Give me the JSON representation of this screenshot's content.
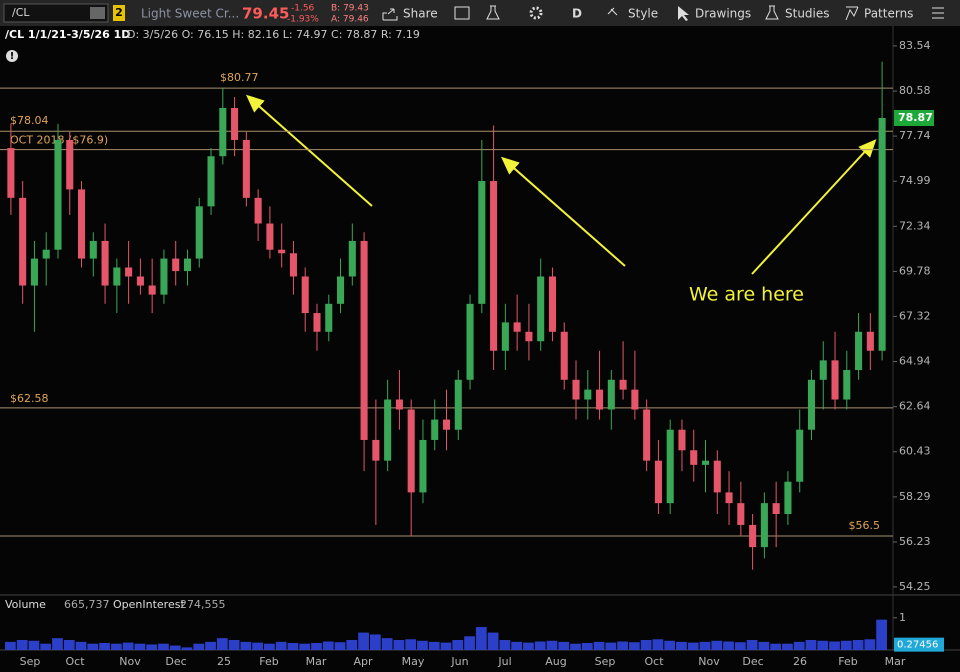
{
  "toolbar": {
    "symbol": "/CL",
    "badge": "2",
    "description": "Light Sweet Cr...",
    "last": "79.45",
    "change": "-1.56",
    "change_pct": "-1.93%",
    "bid": "B: 79.43",
    "ask": "A: 79.46",
    "share": "Share",
    "period": "D",
    "style": "Style",
    "drawings": "Drawings",
    "studies": "Studies",
    "patterns": "Patterns"
  },
  "header": {
    "title": "/CL 1/1/21-3/5/26 1D",
    "ohlc": "D: 3/5/26  O: 76.15  H: 82.16  L: 74.97  C: 78.87  R: 7.19"
  },
  "annotations": {
    "note": "We are here"
  },
  "volume_panel": {
    "volume_label": "Volume",
    "volume_value": "665,737",
    "oi_label": "OpenInterest",
    "oi_value": "274,555",
    "vlim": [
      0.13,
      1.13
    ],
    "vticks": [
      1
    ],
    "current": 0.27456,
    "bars": [
      0.35,
      0.4,
      0.38,
      0.3,
      0.45,
      0.4,
      0.35,
      0.3,
      0.32,
      0.3,
      0.33,
      0.3,
      0.28,
      0.3,
      0.25,
      0.2,
      0.3,
      0.35,
      0.45,
      0.4,
      0.35,
      0.33,
      0.3,
      0.35,
      0.32,
      0.3,
      0.32,
      0.36,
      0.34,
      0.4,
      0.6,
      0.55,
      0.45,
      0.4,
      0.42,
      0.38,
      0.35,
      0.33,
      0.4,
      0.5,
      0.75,
      0.6,
      0.4,
      0.35,
      0.33,
      0.36,
      0.38,
      0.35,
      0.3,
      0.32,
      0.35,
      0.33,
      0.36,
      0.34,
      0.4,
      0.42,
      0.38,
      0.35,
      0.33,
      0.35,
      0.38,
      0.36,
      0.34,
      0.4,
      0.35,
      0.3,
      0.3,
      0.35,
      0.4,
      0.38,
      0.36,
      0.38,
      0.4,
      0.42,
      0.95
    ]
  },
  "chart_data": {
    "type": "candlestick",
    "log_scale": true,
    "up_color": "#3aa757",
    "down_color": "#e5566a",
    "ylim": [
      54.03,
      84.27
    ],
    "yticks": [
      54.25,
      56.23,
      58.29,
      60.43,
      62.64,
      64.94,
      67.32,
      69.78,
      72.34,
      74.99,
      77.74,
      80.58,
      83.54
    ],
    "categories": [
      "Sep",
      "Oct",
      "Nov",
      "Dec",
      "25",
      "Feb",
      "Mar",
      "Apr",
      "May",
      "Jun",
      "Jul",
      "Aug",
      "Sep",
      "Oct",
      "Nov",
      "Dec",
      "26",
      "Feb",
      "Mar"
    ],
    "last": 78.87,
    "levels": [
      {
        "value": 80.77,
        "label": "$80.77"
      },
      {
        "value": 78.04,
        "label": "$78.04"
      },
      {
        "value": 76.9,
        "label": "OCT 2018 ($76.9)"
      },
      {
        "value": 62.58,
        "label": "$62.58"
      },
      {
        "value": 56.5,
        "label": "$56.5"
      }
    ],
    "ohlc": [
      [
        77,
        78.5,
        73,
        74
      ],
      [
        74,
        75,
        68,
        69
      ],
      [
        69,
        71.5,
        66.5,
        70.5
      ],
      [
        70.5,
        72,
        69,
        71
      ],
      [
        71,
        78.5,
        70.5,
        77.5
      ],
      [
        77.5,
        78,
        73,
        74.5
      ],
      [
        74.5,
        75,
        70,
        70.5
      ],
      [
        70.5,
        72,
        69.5,
        71.5
      ],
      [
        71.5,
        72.5,
        68,
        69
      ],
      [
        69,
        70.5,
        67.5,
        70
      ],
      [
        70,
        71.5,
        68,
        69.5
      ],
      [
        69.5,
        70.5,
        68.5,
        69
      ],
      [
        69,
        70.5,
        67.5,
        68.5
      ],
      [
        68.5,
        71,
        68,
        70.5
      ],
      [
        70.5,
        71.5,
        69,
        69.8
      ],
      [
        69.8,
        71,
        69,
        70.5
      ],
      [
        70.5,
        74,
        70,
        73.5
      ],
      [
        73.5,
        77,
        73,
        76.5
      ],
      [
        76.5,
        80.8,
        76,
        79.5
      ],
      [
        79.5,
        80.2,
        76.5,
        77.5
      ],
      [
        77.5,
        78,
        73.5,
        74
      ],
      [
        74,
        74.5,
        71.5,
        72.5
      ],
      [
        72.5,
        73.5,
        70.5,
        71
      ],
      [
        71,
        72.5,
        70,
        70.8
      ],
      [
        70.8,
        71.5,
        68.5,
        69.5
      ],
      [
        69.5,
        70,
        66.5,
        67.5
      ],
      [
        67.5,
        68,
        65.5,
        66.5
      ],
      [
        66.5,
        68.5,
        66,
        68
      ],
      [
        68,
        70.5,
        67.5,
        69.5
      ],
      [
        69.5,
        72.5,
        69,
        71.5
      ],
      [
        71.5,
        72,
        59.5,
        61
      ],
      [
        61,
        63,
        57,
        60
      ],
      [
        60,
        64,
        59.5,
        63
      ],
      [
        63,
        64.5,
        61.5,
        62.5
      ],
      [
        62.5,
        63,
        56.5,
        58.5
      ],
      [
        58.5,
        62,
        58,
        61
      ],
      [
        61,
        63,
        60.5,
        62
      ],
      [
        62,
        63.5,
        60.5,
        61.5
      ],
      [
        61.5,
        64.5,
        61,
        64
      ],
      [
        64,
        68.5,
        63.5,
        68
      ],
      [
        68,
        77.5,
        67.5,
        75
      ],
      [
        75,
        78.4,
        64.5,
        65.5
      ],
      [
        65.5,
        68,
        64.5,
        67
      ],
      [
        67,
        68.5,
        65.5,
        66.5
      ],
      [
        66.5,
        68,
        65,
        66
      ],
      [
        66,
        70.5,
        65.5,
        69.5
      ],
      [
        69.5,
        70,
        66,
        66.5
      ],
      [
        66.5,
        67,
        63.5,
        64
      ],
      [
        64,
        65,
        62,
        63
      ],
      [
        63,
        64.5,
        62,
        63.5
      ],
      [
        63.5,
        65.5,
        62,
        62.5
      ],
      [
        62.5,
        64.5,
        61.5,
        64
      ],
      [
        64,
        66,
        63,
        63.5
      ],
      [
        63.5,
        65.5,
        62,
        62.5
      ],
      [
        62.5,
        63,
        59.5,
        60
      ],
      [
        60,
        61,
        57.5,
        58
      ],
      [
        58,
        62,
        57.5,
        61.5
      ],
      [
        61.5,
        62,
        59.5,
        60.5
      ],
      [
        60.5,
        61.5,
        59,
        59.8
      ],
      [
        59.8,
        61,
        58.5,
        60
      ],
      [
        60,
        60.5,
        57.5,
        58.5
      ],
      [
        58.5,
        59.5,
        57,
        58
      ],
      [
        58,
        59,
        56.5,
        57
      ],
      [
        57,
        57.5,
        55,
        56
      ],
      [
        56,
        58.5,
        55.5,
        58
      ],
      [
        58,
        59,
        56,
        57.5
      ],
      [
        57.5,
        59.5,
        57,
        59
      ],
      [
        59,
        62.5,
        58.5,
        61.5
      ],
      [
        61.5,
        64.5,
        61,
        64
      ],
      [
        64,
        66,
        62.5,
        65
      ],
      [
        65,
        66.5,
        62.5,
        63
      ],
      [
        63,
        65.5,
        62.5,
        64.5
      ],
      [
        64.5,
        67.5,
        64,
        66.5
      ],
      [
        66.5,
        67.5,
        64.5,
        65.5
      ],
      [
        65.5,
        82.5,
        65,
        78.87
      ]
    ]
  }
}
